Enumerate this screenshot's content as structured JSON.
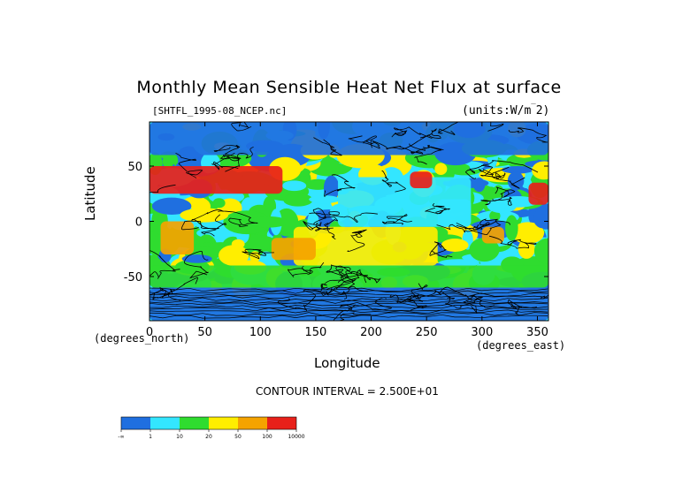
{
  "title": "Monthly Mean Sensible Heat Net Flux at surface",
  "file_label": "[SHTFL_1995-08_NCEP.nc]",
  "units_label": "(units:W/m^2)",
  "xlabel": "Longitude",
  "ylabel": "Latitude",
  "x_unit_label": "(degrees_east)",
  "y_unit_label": "(degrees_north)",
  "contour_interval": "CONTOUR INTERVAL = 2.500E+01",
  "colors": {
    "blue": "#1f6fe0",
    "cyan": "#33e6ff",
    "green": "#2fdc2f",
    "yellow": "#ffee00",
    "orange": "#f5a300",
    "red": "#e8201a",
    "frame": "#000000"
  },
  "chart_data": {
    "type": "heatmap",
    "title": "Monthly Mean Sensible Heat Net Flux at surface",
    "xlabel": "Longitude",
    "ylabel": "Latitude",
    "xlim": [
      0,
      360
    ],
    "ylim": [
      -90,
      90
    ],
    "x_ticks": [
      0,
      50,
      100,
      150,
      200,
      250,
      300,
      350
    ],
    "y_ticks": [
      -50,
      0,
      50
    ],
    "colorbar": {
      "levels": [
        "-∞",
        "1",
        "10",
        "20",
        "50",
        "100",
        "10000"
      ],
      "colors": [
        "#1f6fe0",
        "#33e6ff",
        "#2fdc2f",
        "#ffee00",
        "#f5a300",
        "#e8201a"
      ]
    },
    "contour_interval": 25,
    "regions": [
      {
        "lon": [
          0,
          360
        ],
        "lat": [
          -90,
          -60
        ],
        "level": 0
      },
      {
        "lon": [
          0,
          360
        ],
        "lat": [
          -60,
          -40
        ],
        "level": 2
      },
      {
        "lon": [
          130,
          260
        ],
        "lat": [
          -40,
          -5
        ],
        "level": 3
      },
      {
        "lon": [
          170,
          290
        ],
        "lat": [
          -5,
          40
        ],
        "level": 1
      },
      {
        "lon": [
          260,
          290
        ],
        "lat": [
          -5,
          20
        ],
        "level": 1
      },
      {
        "lon": [
          0,
          120
        ],
        "lat": [
          25,
          50
        ],
        "level": 5
      },
      {
        "lon": [
          235,
          255
        ],
        "lat": [
          30,
          45
        ],
        "level": 5
      },
      {
        "lon": [
          342,
          360
        ],
        "lat": [
          15,
          35
        ],
        "level": 5
      },
      {
        "lon": [
          10,
          40
        ],
        "lat": [
          -30,
          0
        ],
        "level": 4
      },
      {
        "lon": [
          300,
          320
        ],
        "lat": [
          -20,
          -5
        ],
        "level": 4
      },
      {
        "lon": [
          110,
          150
        ],
        "lat": [
          -35,
          -15
        ],
        "level": 4
      },
      {
        "lon": [
          0,
          360
        ],
        "lat": [
          60,
          90
        ],
        "level": 0
      }
    ]
  }
}
